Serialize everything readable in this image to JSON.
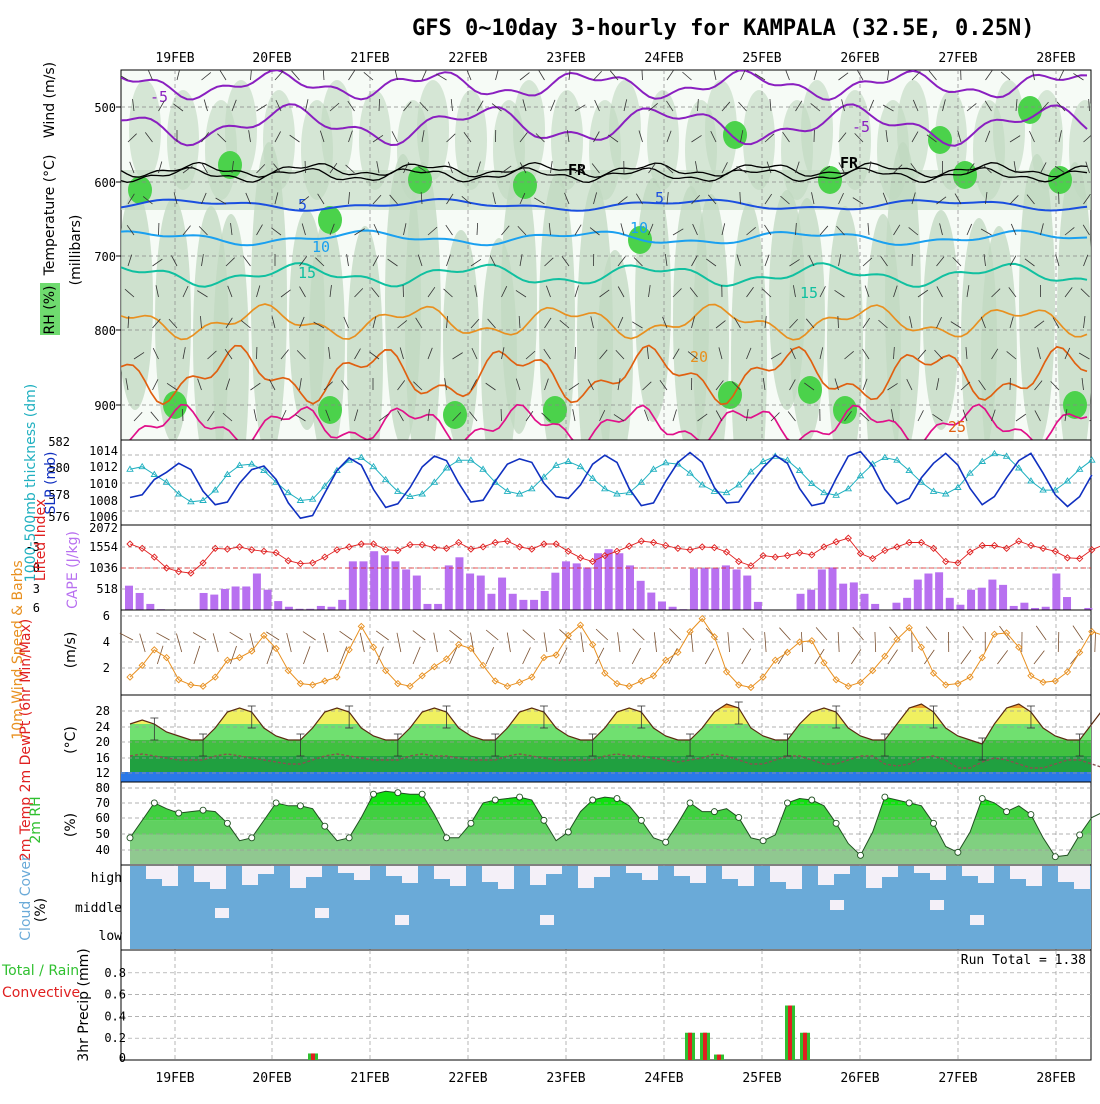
{
  "title": "GFS 0~10day 3-hourly for KAMPALA (32.5E, 0.25N)",
  "dates": [
    "19FEB",
    "20FEB",
    "21FEB",
    "22FEB",
    "23FEB",
    "24FEB",
    "25FEB",
    "26FEB",
    "27FEB",
    "28FEB"
  ],
  "colors": {
    "rh_green": "#4bd24b",
    "rh_light": "#e8f4e8",
    "rh_mid": "#c0d8c0",
    "temp_purple": "#8a1fc0",
    "temp_blue": "#1a4fe0",
    "temp_sky": "#1aa0f0",
    "temp_teal": "#10c0a0",
    "temp_orange": "#e89020",
    "temp_dorange": "#e06010",
    "temp_red": "#e0108a",
    "slp": "#1030c0",
    "thickness": "#20b0c0",
    "cape": "#b870f0",
    "lifted": "#e02020",
    "wind10": "#e89020",
    "cloud": "#6aaad8",
    "precip_green": "#30c030",
    "precip_red": "#e02020"
  },
  "panels": {
    "upper": {
      "labels": {
        "wind": "Wind (m/s)",
        "temp": "Temperature (°C)",
        "rh": "RH (%)",
        "millibars": "(millibars)"
      },
      "yticks": [
        "500",
        "600",
        "700",
        "800",
        "900"
      ],
      "contour_labels": {
        "fr1": "FR",
        "fr2": "FR",
        "m5a": "-5",
        "m5b": "-5",
        "p5a": "5",
        "p5b": "5",
        "p10a": "10",
        "p10b": "10",
        "p15a": "15",
        "p15b": "15",
        "p20": "20",
        "p25": "25"
      }
    },
    "slp": {
      "label_thick": "1000-500mb thickness (dm)",
      "label_slp": "SLP (mb)",
      "left_ticks": [
        "582",
        "580",
        "578",
        "576"
      ],
      "right_ticks": [
        "1014",
        "1012",
        "1010",
        "1008",
        "1006"
      ]
    },
    "cape": {
      "label_li": "Lifted Index",
      "label_cape": "CAPE (J/kg)",
      "left_ticks": [
        "-3",
        "0",
        "3",
        "6"
      ],
      "right_ticks": [
        "2072",
        "1554",
        "1036",
        "518"
      ]
    },
    "wind10": {
      "label": "10m Wind Speed & Barbs",
      "unit": "(m/s)",
      "ticks": [
        "6",
        "4",
        "2"
      ]
    },
    "temp2m": {
      "label": "2m Temp 2m DewPt (6hr Min/Max)",
      "unit": "(°C)",
      "ticks": [
        "28",
        "24",
        "20",
        "16",
        "12"
      ]
    },
    "rh2m": {
      "label": "2m RH",
      "unit": "(%)",
      "ticks": [
        "80",
        "70",
        "60",
        "50",
        "40"
      ]
    },
    "cloud": {
      "label": "Cloud Cover",
      "unit": "(%)",
      "levels": [
        "high",
        "middle",
        "low"
      ]
    },
    "precip": {
      "label_total": "Total / Rain",
      "label_conv": "Convective",
      "label_axis": "3hr Precip (mm)",
      "ticks": [
        "0.8",
        "0.6",
        "0.4",
        "0.2",
        "0"
      ],
      "run_total": "Run Total = 1.38"
    }
  },
  "chart_data": [
    {
      "type": "line",
      "title": "1000-500mb thickness (dm) / SLP (mb)",
      "x_unit": "3-hourly steps from 18FEB 15Z",
      "series": [
        {
          "name": "SLP (mb)",
          "values": [
            1008.5,
            1008.8,
            1010.5,
            1011.3,
            1012.3,
            1011.6,
            1009.2,
            1007.7,
            1008.0,
            1010.1,
            1011.6,
            1012.0,
            1010.5,
            1007.9,
            1006.2,
            1006.5,
            1009.0,
            1011.5,
            1012.9,
            1012.1,
            1009.4,
            1007.4,
            1007.8,
            1009.6,
            1011.9,
            1013.1,
            1012.6,
            1010.1,
            1008.0,
            1008.2,
            1010.3,
            1012.2,
            1012.8,
            1012.4,
            1010.1,
            1008.6,
            1008.4,
            1009.9,
            1012.2,
            1013.2,
            1012.4,
            1009.5,
            1007.6,
            1007.9,
            1010.3,
            1012.4,
            1013.5,
            1012.4,
            1009.6,
            1007.9,
            1008.0,
            1010.0,
            1011.8,
            1013.2,
            1012.3,
            1009.5,
            1007.6,
            1007.9,
            1010.6,
            1013.1,
            1013.6,
            1012.0,
            1009.4,
            1007.8,
            1008.4,
            1010.7,
            1012.3,
            1013.4,
            1012.1,
            1009.5,
            1007.7,
            1008.6,
            1010.7,
            1012.6,
            1013.4,
            1011.2,
            1008.8,
            1007.5,
            1008.6,
            1011.0
          ]
        },
        {
          "name": "1000-500mb thickness (dm)",
          "values": [
            579.9,
            580.1,
            579.5,
            578.9,
            578.0,
            577.4,
            577.5,
            578.3,
            579.5,
            580.2,
            580.3,
            579.8,
            578.9,
            578.1,
            577.5,
            577.6,
            578.6,
            579.8,
            580.6,
            580.8,
            580.1,
            579.1,
            578.2,
            577.8,
            578.0,
            578.9,
            580.0,
            580.6,
            580.6,
            579.9,
            578.9,
            578.2,
            578.0,
            578.4,
            579.3,
            580.2,
            580.5,
            580.1,
            579.2,
            578.4,
            578.0,
            578.1,
            578.9,
            579.9,
            580.4,
            580.3,
            579.6,
            578.7,
            578.2,
            578.1,
            578.7,
            579.7,
            580.5,
            580.9,
            580.6,
            579.8,
            578.8,
            578.1,
            577.9,
            578.4,
            579.4,
            580.3,
            580.8,
            580.6,
            579.8,
            578.9,
            578.2,
            578.0,
            578.5,
            579.6,
            580.5,
            581.1,
            580.9,
            580.0,
            579.0,
            578.3,
            578.3,
            579.0,
            579.9,
            580.6
          ]
        }
      ],
      "ylim_slp": [
        1006,
        1014
      ],
      "ylim_thickness": [
        576,
        582
      ]
    },
    {
      "type": "bar",
      "title": "CAPE (J/kg) / Lifted Index",
      "series": [
        {
          "name": "CAPE (J/kg)",
          "values": [
            600,
            420,
            150,
            20,
            0,
            0,
            0,
            420,
            380,
            520,
            580,
            580,
            900,
            500,
            220,
            80,
            30,
            30,
            100,
            80,
            250,
            1200,
            1200,
            1450,
            1350,
            1200,
            1000,
            850,
            150,
            150,
            1100,
            1300,
            900,
            850,
            400,
            800,
            400,
            250,
            250,
            470,
            920,
            1200,
            1150,
            1050,
            1400,
            1500,
            1400,
            1100,
            720,
            430,
            210,
            80,
            20,
            1020,
            1030,
            1030,
            1100,
            1000,
            850,
            200,
            0,
            0,
            0,
            400,
            500,
            1000,
            1050,
            650,
            680,
            400,
            150,
            0,
            180,
            300,
            750,
            900,
            930,
            300,
            130,
            500,
            550,
            750,
            620,
            100,
            180,
            50,
            80,
            900,
            320,
            0,
            50
          ]
        },
        {
          "name": "Lifted Index",
          "values": [
            -2.8,
            -2.2,
            -1.0,
            0.5,
            1.0,
            1.2,
            -0.2,
            -2.2,
            -2.1,
            -2.4,
            -2.0,
            -1.8,
            -1.6,
            -0.5,
            -0.1,
            -0.2,
            -1.0,
            -2.0,
            -2.4,
            -2.8,
            -2.8,
            -2.0,
            -1.9,
            -2.7,
            -2.7,
            -2.3,
            -2.2,
            -3.0,
            -2.1,
            -2.4,
            -3.0,
            -3.2,
            -2.4,
            -2.1,
            -2.8,
            -2.8,
            -1.8,
            -0.9,
            -0.4,
            -1.2,
            -1.8,
            -2.5,
            -3.2,
            -3.0,
            -2.6,
            -2.2,
            -2.0,
            -2.4,
            -2.3,
            -1.7,
            -0.4,
            0.2,
            -1.2,
            -1.0,
            -1.2,
            -1.6,
            -1.3,
            -2.4,
            -3.1,
            -3.6,
            -1.5,
            -0.8,
            -1.9,
            -2.4,
            -3.0,
            -3.0,
            -2.2,
            -0.4,
            -0.2,
            -1.7,
            -2.6,
            -2.6,
            -2.2,
            -3.2,
            -2.6,
            -2.2,
            -1.8,
            -0.9,
            -0.8,
            -2.0,
            -2.7,
            -2.5,
            -3.2,
            -2.0,
            -1.1,
            -2.7,
            -3.7,
            -1.0,
            -0.5,
            -1.6,
            -1.6
          ]
        }
      ],
      "ylim_cape": [
        0,
        2072
      ],
      "ylim_li": [
        6,
        -5
      ]
    },
    {
      "type": "line",
      "title": "10m Wind Speed & Barbs",
      "series": [
        {
          "name": "10m Wind Speed (m/s)",
          "values": [
            1.3,
            2.2,
            3.4,
            2.8,
            1.1,
            0.7,
            0.6,
            1.3,
            2.6,
            2.8,
            3.3,
            4.5,
            3.5,
            1.8,
            0.8,
            0.7,
            1.0,
            1.3,
            3.4,
            5.2,
            3.6,
            1.8,
            0.8,
            0.6,
            1.4,
            2.1,
            2.7,
            3.8,
            3.5,
            2.2,
            1.0,
            0.6,
            0.9,
            1.3,
            2.8,
            3.0,
            4.5,
            5.3,
            3.8,
            1.6,
            0.8,
            0.6,
            1.0,
            1.4,
            2.6,
            3.2,
            4.8,
            5.8,
            4.4,
            1.7,
            0.7,
            0.5,
            1.3,
            2.6,
            3.2,
            4.0,
            4.1,
            2.4,
            1.1,
            0.6,
            0.9,
            1.8,
            2.9,
            4.2,
            5.1,
            3.6,
            1.6,
            0.7,
            0.8,
            1.3,
            2.8,
            4.6,
            4.7,
            3.6,
            1.4,
            0.9,
            1.0,
            1.7,
            3.2,
            4.8,
            4.5,
            4.6,
            4.6,
            3.3,
            1.0,
            0.9,
            1.4,
            2.4,
            2.6,
            2.3,
            2.6
          ]
        }
      ],
      "ylim": [
        0,
        6
      ]
    },
    {
      "type": "area",
      "title": "2m Temp / 2m DewPt",
      "series": [
        {
          "name": "2m Temp (°C)",
          "values": [
            24,
            25,
            24,
            22,
            21,
            20,
            20,
            23,
            27,
            28,
            27,
            23,
            21,
            20,
            20,
            23,
            27,
            28,
            27,
            23,
            21,
            20,
            20,
            23,
            27,
            28,
            27,
            23,
            21,
            20,
            20,
            23,
            27,
            28,
            27,
            23,
            21,
            20,
            20,
            23,
            27,
            28,
            27,
            23,
            21,
            20,
            20,
            23,
            27,
            29,
            28,
            23,
            21,
            20,
            20,
            24,
            27,
            28,
            27,
            23,
            21,
            20,
            20,
            24,
            28,
            29,
            27,
            23,
            21,
            20,
            19,
            24,
            28,
            29,
            27,
            23,
            21,
            20,
            20,
            24,
            28,
            30,
            27,
            23,
            21,
            20,
            19,
            22,
            24,
            22
          ]
        },
        {
          "name": "2m DewPt (°C)",
          "values": [
            16,
            16.5,
            16,
            15.5,
            15,
            15,
            15,
            16,
            16.5,
            16,
            15.5,
            15,
            14.5,
            14,
            14,
            15,
            16,
            16.5,
            16,
            15.5,
            15,
            15,
            15,
            16,
            16.5,
            16,
            16,
            15.5,
            15,
            15,
            15,
            16,
            16.5,
            16,
            15.5,
            15,
            15,
            15,
            15,
            16,
            16.5,
            16,
            16,
            15.5,
            15,
            14.5,
            15,
            15.5,
            16.5,
            16,
            15,
            14,
            14,
            15,
            16,
            16,
            15,
            14,
            14,
            15,
            16,
            16,
            14,
            13.5,
            14,
            15.5,
            16,
            15,
            13,
            13,
            14.5,
            15.5,
            15,
            14,
            13,
            13,
            14,
            15,
            15,
            14,
            13,
            13,
            14,
            15,
            15,
            13.5,
            13,
            13,
            14,
            13.5
          ]
        }
      ],
      "ylim": [
        10,
        30
      ]
    },
    {
      "type": "area",
      "title": "2m RH",
      "series": [
        {
          "name": "2m RH (%)",
          "values": [
            48,
            60,
            72,
            68,
            65,
            66,
            67,
            66,
            58,
            46,
            48,
            60,
            72,
            70,
            70,
            68,
            56,
            46,
            48,
            62,
            78,
            80,
            79,
            78,
            78,
            64,
            48,
            48,
            58,
            72,
            74,
            75,
            76,
            74,
            60,
            46,
            52,
            66,
            74,
            76,
            75,
            70,
            60,
            48,
            45,
            58,
            72,
            66,
            66,
            68,
            62,
            48,
            46,
            50,
            72,
            75,
            74,
            70,
            58,
            44,
            36,
            52,
            76,
            74,
            72,
            70,
            58,
            42,
            38,
            52,
            75,
            72,
            66,
            70,
            64,
            48,
            35,
            36,
            50,
            62,
            66,
            64,
            60,
            52,
            50
          ]
        }
      ],
      "ylim": [
        30,
        85
      ]
    },
    {
      "type": "bar",
      "title": "3hr Precip (mm)",
      "series": [
        {
          "name": "Total / Rain",
          "values": [
            {
              "date": "20FEB",
              "v": 0.06
            },
            {
              "date": "24FEB",
              "v": 0.25
            },
            {
              "date": "24FEB",
              "v": 0.25
            },
            {
              "date": "24FEB",
              "v": 0.05
            },
            {
              "date": "25FEB",
              "v": 0.5
            },
            {
              "date": "25FEB",
              "v": 0.25
            }
          ]
        }
      ],
      "ylim": [
        0,
        1.0
      ]
    }
  ]
}
